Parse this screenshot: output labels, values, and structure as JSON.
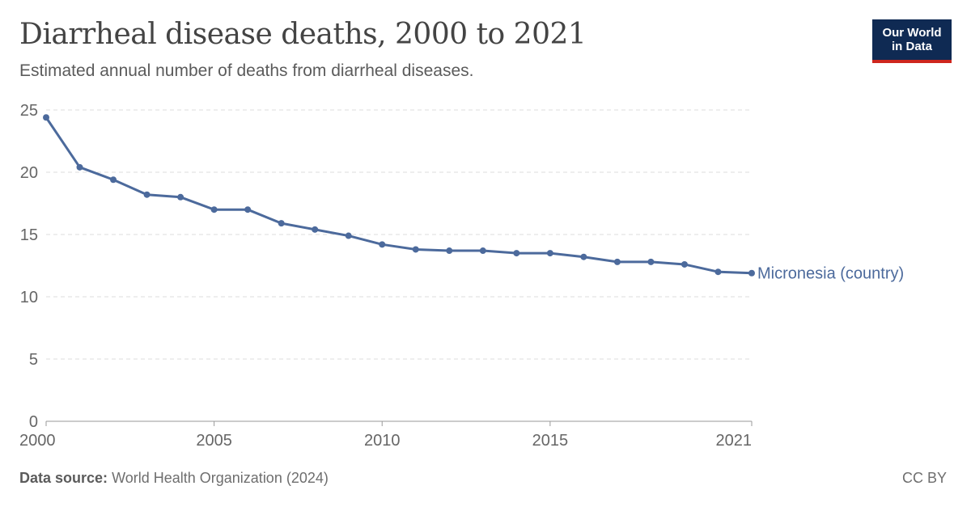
{
  "header": {
    "title": "Diarrheal disease deaths, 2000 to 2021",
    "subtitle": "Estimated annual number of deaths from diarrheal diseases."
  },
  "logo": {
    "line1": "Our World",
    "line2": "in Data",
    "colors": {
      "background": "#0f2a53",
      "accent": "#ce261e"
    }
  },
  "footer": {
    "source_label": "Data source:",
    "source_value": "World Health Organization (2024)",
    "license": "CC BY"
  },
  "chart_data": {
    "type": "line",
    "x": [
      2000,
      2001,
      2002,
      2003,
      2004,
      2005,
      2006,
      2007,
      2008,
      2009,
      2010,
      2011,
      2012,
      2013,
      2014,
      2015,
      2016,
      2017,
      2018,
      2019,
      2020,
      2021
    ],
    "series": [
      {
        "name": "Micronesia (country)",
        "color": "#4c6a9c",
        "values": [
          24.4,
          20.4,
          19.4,
          18.2,
          18.0,
          17.0,
          17.0,
          15.9,
          15.4,
          14.9,
          14.2,
          13.8,
          13.7,
          13.7,
          13.5,
          13.5,
          13.2,
          12.8,
          12.8,
          12.6,
          12.0,
          11.9
        ]
      }
    ],
    "ylim": [
      0,
      25
    ],
    "xlim": [
      2000,
      2021
    ],
    "y_ticks": [
      0,
      5,
      10,
      15,
      20,
      25
    ],
    "x_ticks": [
      2000,
      2005,
      2010,
      2015,
      2021
    ],
    "grid": "horizontal dashed",
    "xlabel": "",
    "ylabel": ""
  }
}
